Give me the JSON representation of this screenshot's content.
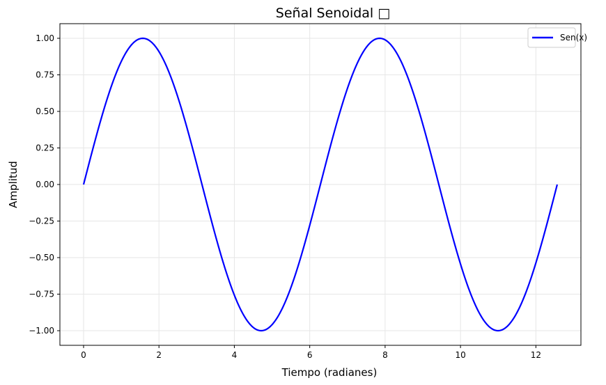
{
  "chart_data": {
    "type": "line",
    "title": "Señal Senoidal □",
    "xlabel": "Tiempo (radianes)",
    "ylabel": "Amplitud",
    "xlim": [
      -0.628,
      13.195
    ],
    "ylim": [
      -1.1,
      1.1
    ],
    "xticks": [
      0,
      2,
      4,
      6,
      8,
      10,
      12
    ],
    "xtick_labels": [
      "0",
      "2",
      "4",
      "6",
      "8",
      "10",
      "12"
    ],
    "yticks": [
      1.0,
      0.75,
      0.5,
      0.25,
      0.0,
      -0.25,
      -0.5,
      -0.75,
      -1.0
    ],
    "ytick_labels": [
      "1.00",
      "0.75",
      "0.50",
      "0.25",
      "0.00",
      "−0.25",
      "−0.50",
      "−0.75",
      "−1.00"
    ],
    "grid": true,
    "legend_position": "top-right",
    "series": [
      {
        "name": "Sen(x)",
        "color": "#0000ff",
        "function": "sin(x)",
        "x_range": [
          0,
          12.566
        ],
        "points": [
          [
            0,
            0
          ],
          [
            0.785,
            0.707
          ],
          [
            1.571,
            1.0
          ],
          [
            2.356,
            0.707
          ],
          [
            3.142,
            0.0
          ],
          [
            3.927,
            -0.707
          ],
          [
            4.712,
            -1.0
          ],
          [
            5.498,
            -0.707
          ],
          [
            6.283,
            0.0
          ],
          [
            7.069,
            0.707
          ],
          [
            7.854,
            1.0
          ],
          [
            8.639,
            0.707
          ],
          [
            9.425,
            0.0
          ],
          [
            10.21,
            -0.707
          ],
          [
            10.996,
            -1.0
          ],
          [
            11.781,
            -0.707
          ],
          [
            12.566,
            0.0
          ]
        ]
      }
    ]
  }
}
